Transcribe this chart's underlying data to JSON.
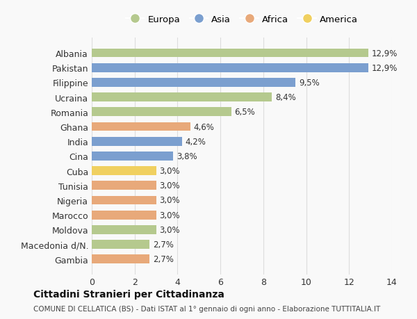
{
  "countries": [
    "Albania",
    "Pakistan",
    "Filippine",
    "Ucraina",
    "Romania",
    "Ghana",
    "India",
    "Cina",
    "Cuba",
    "Tunisia",
    "Nigeria",
    "Marocco",
    "Moldova",
    "Macedonia d/N.",
    "Gambia"
  ],
  "values": [
    12.9,
    12.9,
    9.5,
    8.4,
    6.5,
    4.6,
    4.2,
    3.8,
    3.0,
    3.0,
    3.0,
    3.0,
    3.0,
    2.7,
    2.7
  ],
  "continents": [
    "Europa",
    "Asia",
    "Asia",
    "Europa",
    "Europa",
    "Africa",
    "Asia",
    "Asia",
    "America",
    "Africa",
    "Africa",
    "Africa",
    "Europa",
    "Europa",
    "Africa"
  ],
  "continent_colors": {
    "Europa": "#b5c98e",
    "Asia": "#7b9fcf",
    "Africa": "#e8a97a",
    "America": "#f0d060"
  },
  "labels": [
    "12,9%",
    "12,9%",
    "9,5%",
    "8,4%",
    "6,5%",
    "4,6%",
    "4,2%",
    "3,8%",
    "3,0%",
    "3,0%",
    "3,0%",
    "3,0%",
    "3,0%",
    "2,7%",
    "2,7%"
  ],
  "legend_order": [
    "Europa",
    "Asia",
    "Africa",
    "America"
  ],
  "xlim": [
    0,
    14
  ],
  "xticks": [
    0,
    2,
    4,
    6,
    8,
    10,
    12,
    14
  ],
  "title": "Cittadini Stranieri per Cittadinanza",
  "subtitle": "COMUNE DI CELLATICA (BS) - Dati ISTAT al 1° gennaio di ogni anno - Elaborazione TUTTITALIA.IT",
  "background_color": "#f9f9f9",
  "grid_color": "#dddddd"
}
